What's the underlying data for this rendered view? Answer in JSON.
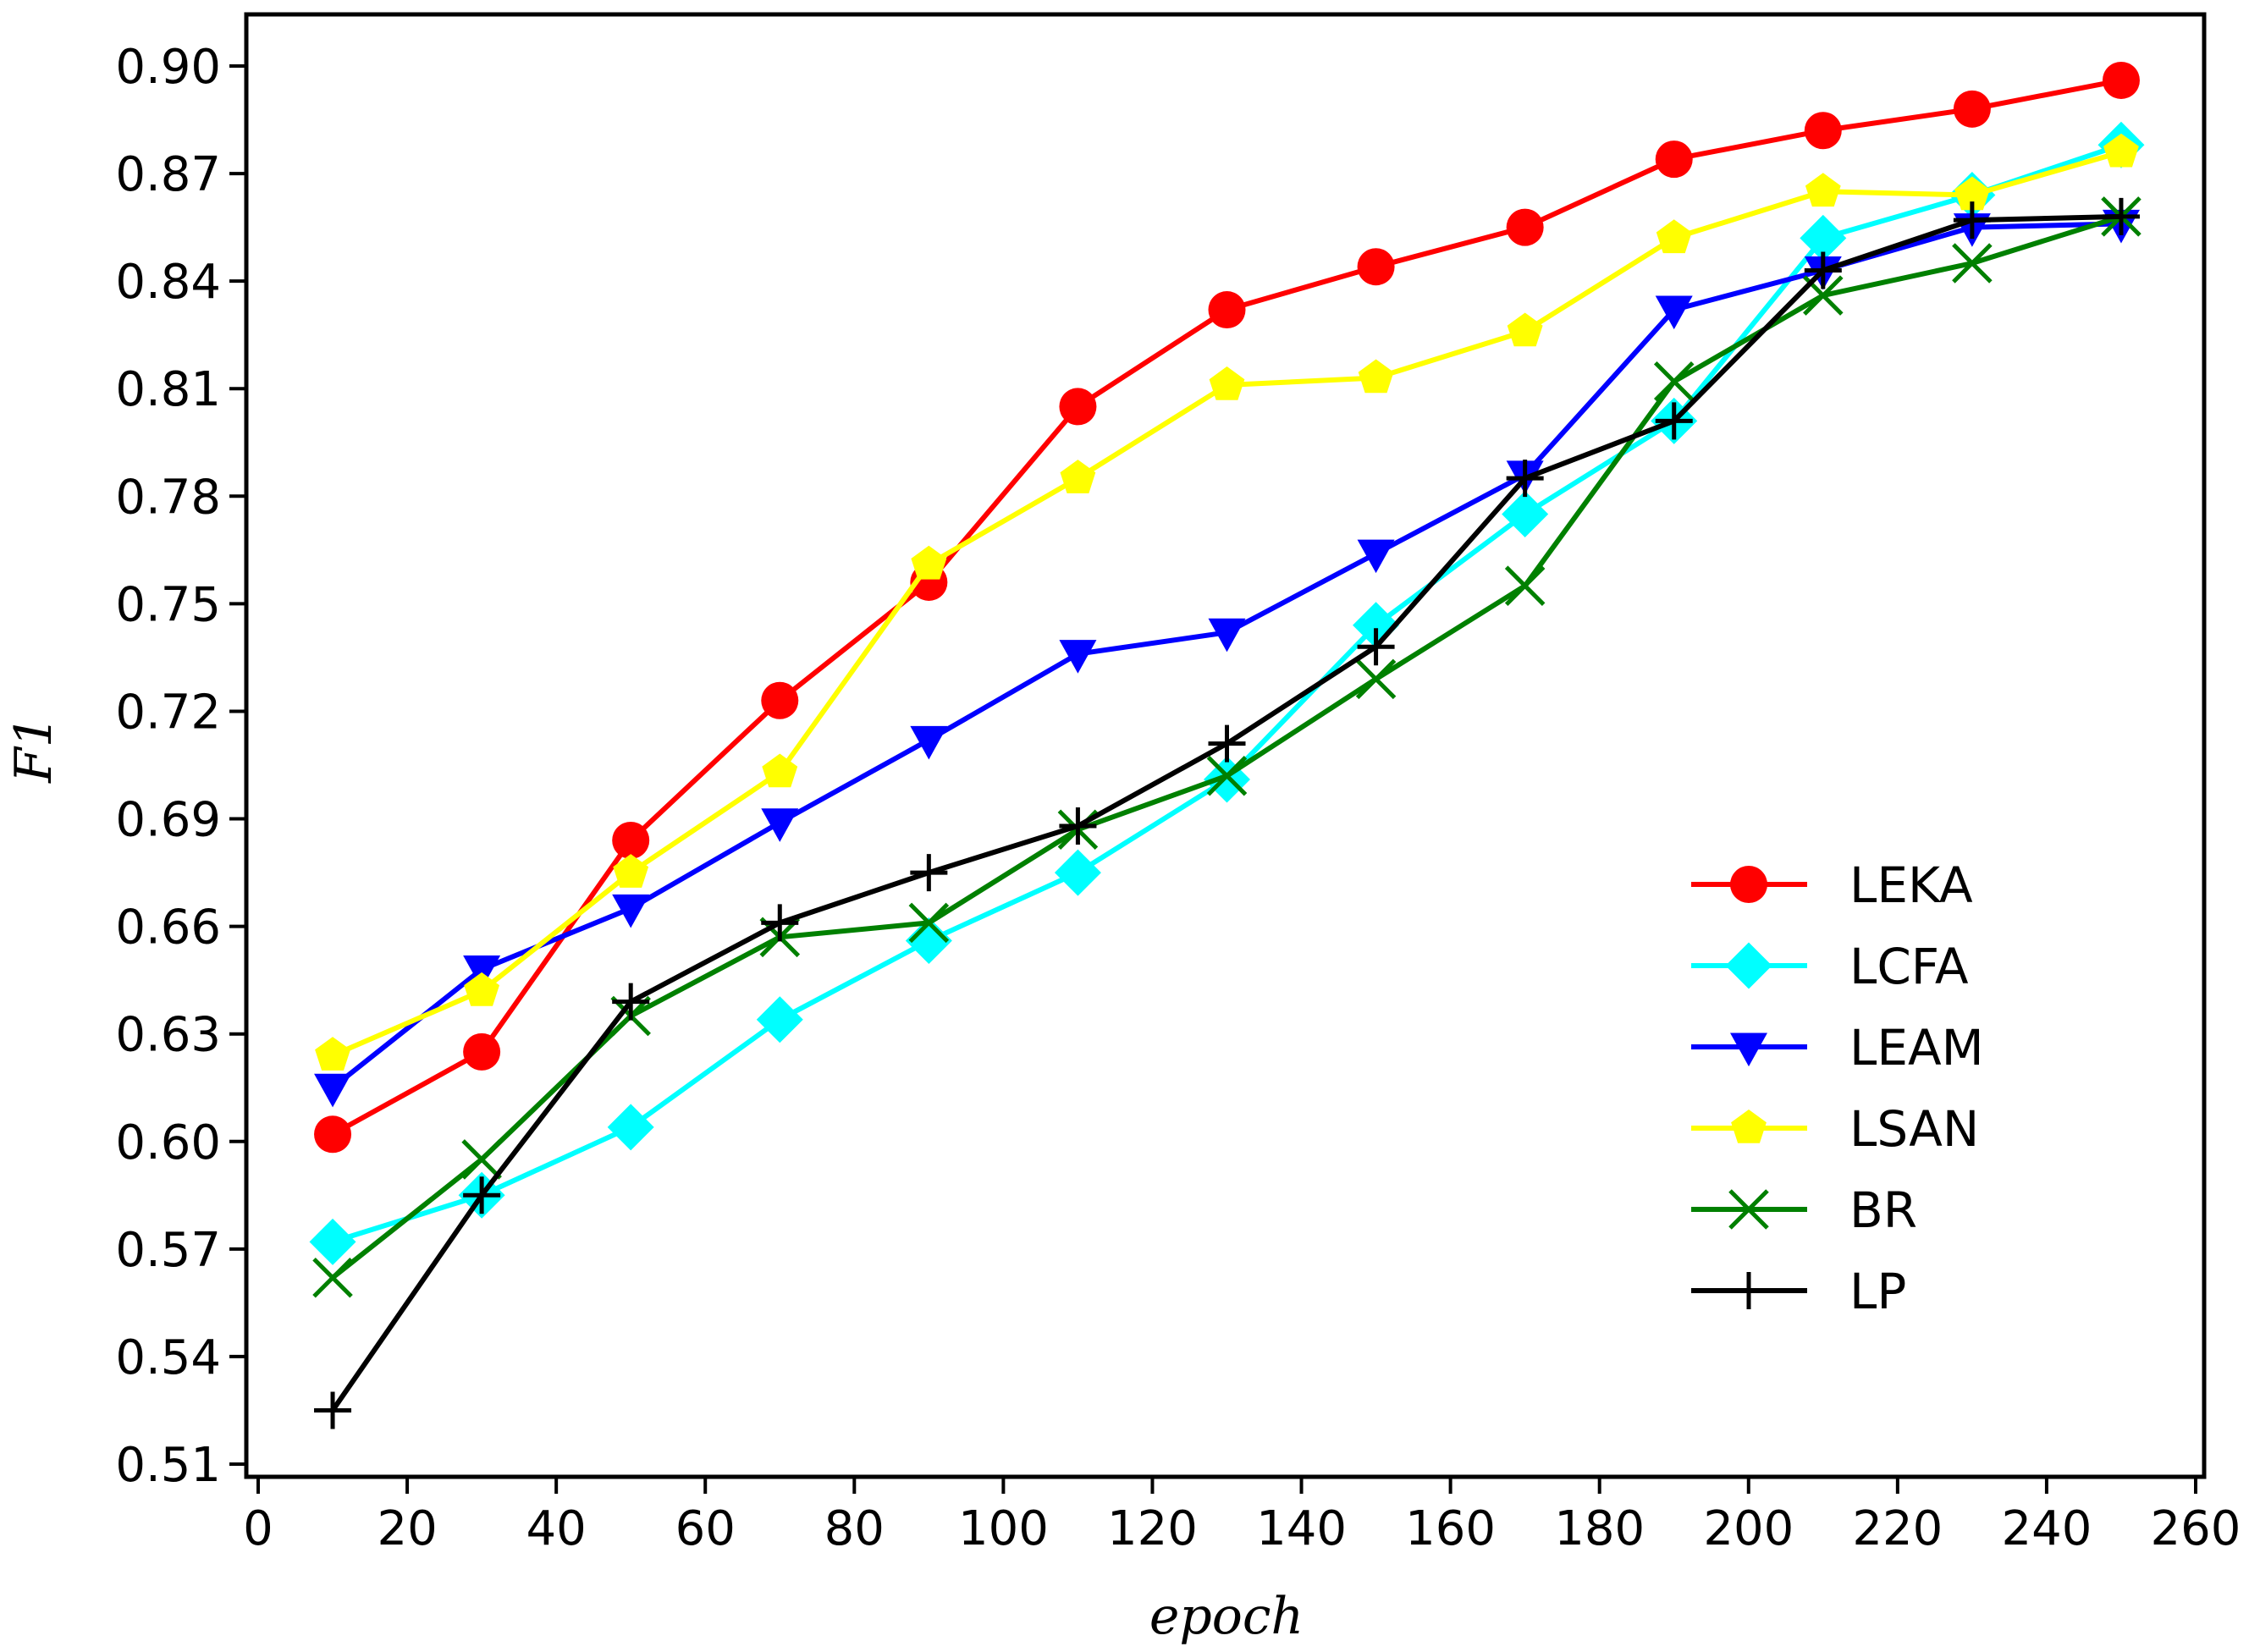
{
  "chart_data": {
    "type": "line",
    "title": "",
    "xlabel": "epoch",
    "ylabel": "F1",
    "xlim": [
      -2,
      262
    ],
    "ylim": [
      0.505,
      0.912
    ],
    "x_ticks": [
      0,
      20,
      40,
      60,
      80,
      100,
      120,
      140,
      160,
      180,
      200,
      220,
      240,
      260
    ],
    "y_ticks": [
      "0.51",
      "0.54",
      "0.57",
      "0.60",
      "0.63",
      "0.66",
      "0.69",
      "0.72",
      "0.75",
      "0.78",
      "0.81",
      "0.84",
      "0.87",
      "0.90"
    ],
    "grid": false,
    "legend_position": "lower-right",
    "x": [
      10,
      30,
      50,
      70,
      90,
      110,
      130,
      150,
      170,
      190,
      210,
      230,
      250
    ],
    "series": [
      {
        "name": "LEKA",
        "color": "#ff0000",
        "marker": "circle",
        "values": [
          0.602,
          0.625,
          0.684,
          0.723,
          0.756,
          0.805,
          0.832,
          0.844,
          0.855,
          0.874,
          0.882,
          0.888,
          0.896
        ]
      },
      {
        "name": "LCFA",
        "color": "#00ffff",
        "marker": "diamond",
        "values": [
          0.572,
          0.585,
          0.604,
          0.634,
          0.656,
          0.675,
          0.701,
          0.744,
          0.775,
          0.801,
          0.852,
          0.864,
          0.878
        ]
      },
      {
        "name": "LEAM",
        "color": "#0000ff",
        "marker": "triangle-down",
        "values": [
          0.615,
          0.648,
          0.665,
          0.689,
          0.712,
          0.736,
          0.742,
          0.764,
          0.786,
          0.832,
          0.843,
          0.855,
          0.856
        ]
      },
      {
        "name": "LSAN",
        "color": "#ffff00",
        "marker": "pentagon",
        "values": [
          0.624,
          0.642,
          0.675,
          0.703,
          0.761,
          0.785,
          0.811,
          0.813,
          0.826,
          0.852,
          0.865,
          0.864,
          0.876
        ]
      },
      {
        "name": "BR",
        "color": "#008000",
        "marker": "x",
        "values": [
          0.562,
          0.595,
          0.635,
          0.657,
          0.661,
          0.687,
          0.702,
          0.729,
          0.755,
          0.812,
          0.836,
          0.845,
          0.858
        ]
      },
      {
        "name": "LP",
        "color": "#000000",
        "marker": "plus",
        "values": [
          0.525,
          0.585,
          0.639,
          0.661,
          0.675,
          0.688,
          0.711,
          0.738,
          0.785,
          0.801,
          0.843,
          0.857,
          0.858
        ]
      }
    ]
  }
}
